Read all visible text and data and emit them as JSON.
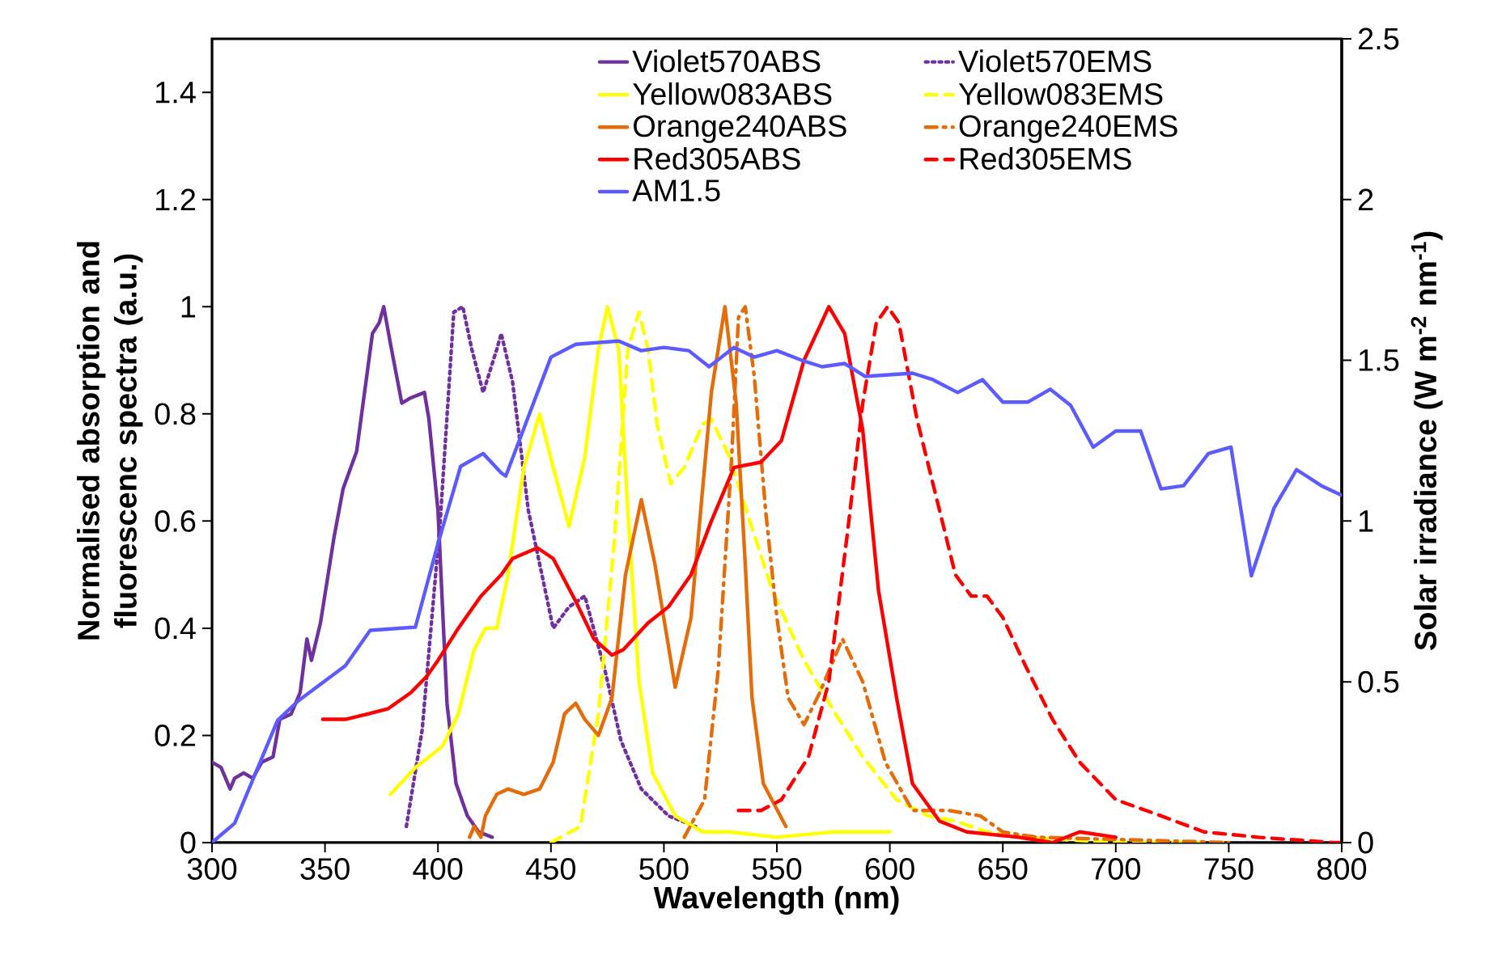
{
  "chart_data": {
    "type": "line",
    "xlabel": "Wavelength (nm)",
    "ylabel": "Normalised absorption and fluorescenc spectra (a.u.)",
    "y2label": "Solar irradiance (W m$^{-2}$ nm$^{-1}$)",
    "xlim": [
      300,
      800
    ],
    "xticks": [
      300,
      350,
      400,
      450,
      500,
      550,
      600,
      650,
      700,
      750,
      800
    ],
    "ylim": [
      0,
      1.5
    ],
    "yticks": [
      0,
      0.2,
      0.4,
      0.6,
      0.8,
      1,
      1.2,
      1.4
    ],
    "y2lim": [
      0,
      2.5
    ],
    "y2ticks": [
      0,
      0.5,
      1,
      1.5,
      2,
      2.5
    ],
    "legend": "top",
    "grid": false,
    "series": [
      {
        "name": "Violet570ABS",
        "color": "#7030a0",
        "line_style": "solid",
        "x": [
          300,
          304,
          308,
          310,
          314,
          318,
          322,
          327,
          330,
          335,
          339,
          342,
          344,
          348,
          354,
          358,
          364,
          371,
          374,
          376,
          379,
          384,
          388,
          394,
          396,
          400,
          404,
          408,
          413,
          418,
          424
        ],
        "values": [
          0.15,
          0.14,
          0.1,
          0.12,
          0.13,
          0.12,
          0.15,
          0.16,
          0.23,
          0.24,
          0.28,
          0.38,
          0.34,
          0.41,
          0.57,
          0.66,
          0.73,
          0.95,
          0.97,
          1.0,
          0.93,
          0.82,
          0.83,
          0.84,
          0.79,
          0.62,
          0.26,
          0.11,
          0.05,
          0.02,
          0.01
        ]
      },
      {
        "name": "Violet570EMS",
        "color": "#7030a0",
        "line_style": "dotted",
        "x": [
          386,
          393,
          401,
          407,
          411,
          415,
          420,
          426,
          428,
          433,
          440,
          451,
          458,
          465,
          474,
          481,
          490,
          502,
          514
        ],
        "values": [
          0.03,
          0.21,
          0.6,
          0.99,
          1.0,
          0.92,
          0.84,
          0.92,
          0.95,
          0.86,
          0.62,
          0.4,
          0.44,
          0.46,
          0.32,
          0.19,
          0.1,
          0.05,
          0.03
        ]
      },
      {
        "name": "Yellow083ABS",
        "color": "#ffff00",
        "line_style": "solid",
        "x": [
          379,
          390,
          402,
          409,
          416,
          421,
          426,
          431,
          438,
          445,
          451,
          458,
          465,
          471,
          475,
          480,
          484,
          489,
          495,
          505,
          517,
          529,
          550,
          575,
          600
        ],
        "values": [
          0.09,
          0.14,
          0.18,
          0.24,
          0.36,
          0.4,
          0.4,
          0.5,
          0.7,
          0.8,
          0.7,
          0.59,
          0.72,
          0.92,
          1.0,
          0.92,
          0.62,
          0.3,
          0.13,
          0.05,
          0.02,
          0.02,
          0.01,
          0.02,
          0.02
        ]
      },
      {
        "name": "Yellow083EMS",
        "color": "#ffff00",
        "line_style": "dashed",
        "x": [
          450,
          463,
          471,
          478,
          484,
          489,
          493,
          497,
          503,
          509,
          517,
          521,
          529,
          538,
          548,
          562,
          576,
          588,
          603,
          617,
          629,
          643,
          660,
          700,
          750
        ],
        "values": [
          0,
          0.03,
          0.24,
          0.56,
          0.92,
          0.99,
          0.92,
          0.78,
          0.67,
          0.7,
          0.78,
          0.79,
          0.72,
          0.6,
          0.47,
          0.34,
          0.24,
          0.16,
          0.08,
          0.05,
          0.04,
          0.02,
          0.01,
          0,
          0
        ]
      },
      {
        "name": "Orange240ABS",
        "color": "#e46c0a",
        "line_style": "solid",
        "x": [
          414,
          416,
          419,
          421,
          426,
          431,
          438,
          445,
          451,
          456,
          461,
          465,
          471,
          477,
          483,
          490,
          496,
          505,
          512,
          521,
          527,
          532,
          536,
          539,
          544,
          554
        ],
        "values": [
          0.01,
          0.03,
          0.01,
          0.05,
          0.09,
          0.1,
          0.09,
          0.1,
          0.15,
          0.24,
          0.26,
          0.23,
          0.2,
          0.27,
          0.5,
          0.64,
          0.52,
          0.29,
          0.42,
          0.84,
          1.0,
          0.82,
          0.52,
          0.27,
          0.11,
          0.03
        ]
      },
      {
        "name": "Orange240EMS",
        "color": "#e46c0a",
        "line_style": "dashdot",
        "x": [
          509,
          518,
          524,
          530,
          533,
          536,
          540,
          545,
          550,
          555,
          562,
          569,
          579,
          588,
          598,
          610,
          626,
          640,
          650,
          665,
          750
        ],
        "values": [
          0.01,
          0.08,
          0.32,
          0.72,
          0.98,
          1.0,
          0.87,
          0.62,
          0.42,
          0.27,
          0.22,
          0.28,
          0.38,
          0.3,
          0.15,
          0.06,
          0.06,
          0.05,
          0.02,
          0.01,
          0
        ]
      },
      {
        "name": "Red305ABS",
        "color": "#ff0000",
        "line_style": "solid",
        "x": [
          349,
          359,
          369,
          378,
          388,
          395,
          400,
          409,
          419,
          428,
          433,
          444,
          451,
          461,
          469,
          477,
          482,
          493,
          502,
          512,
          521,
          531,
          543,
          552,
          562,
          573,
          580,
          588,
          595,
          603,
          610,
          622,
          634,
          657,
          672,
          684,
          700
        ],
        "values": [
          0.23,
          0.23,
          0.24,
          0.25,
          0.28,
          0.31,
          0.34,
          0.4,
          0.46,
          0.5,
          0.53,
          0.55,
          0.53,
          0.45,
          0.38,
          0.35,
          0.36,
          0.41,
          0.44,
          0.5,
          0.6,
          0.7,
          0.71,
          0.75,
          0.9,
          1.0,
          0.95,
          0.77,
          0.47,
          0.27,
          0.11,
          0.04,
          0.02,
          0.01,
          0.0,
          0.02,
          0.01
        ]
      },
      {
        "name": "Red305EMS",
        "color": "#ff0000",
        "line_style": "dashed",
        "x": [
          533,
          543,
          552,
          564,
          573,
          581,
          588,
          594,
          599,
          604,
          612,
          622,
          629,
          636,
          643,
          650,
          660,
          672,
          684,
          700,
          720,
          739,
          763,
          796,
          800
        ],
        "values": [
          0.06,
          0.06,
          0.08,
          0.16,
          0.3,
          0.57,
          0.82,
          0.97,
          1.0,
          0.97,
          0.79,
          0.62,
          0.5,
          0.46,
          0.46,
          0.42,
          0.33,
          0.23,
          0.15,
          0.08,
          0.05,
          0.02,
          0.01,
          0,
          0
        ]
      },
      {
        "name": "AM1.5",
        "color": "#5b5bff",
        "line_style": "solid",
        "axis": "y2",
        "x": [
          300,
          310,
          329,
          338,
          359,
          370,
          390,
          400,
          410,
          420,
          428,
          430,
          450,
          461,
          480,
          490,
          500,
          511,
          520,
          531,
          540,
          550,
          561,
          570,
          580,
          589,
          610,
          619,
          630,
          641,
          650,
          661,
          671,
          680,
          690,
          700,
          711,
          720,
          730,
          741,
          751,
          760,
          770,
          780,
          791,
          800
        ],
        "values": [
          0,
          0.06,
          0.38,
          0.44,
          0.55,
          0.66,
          0.67,
          0.93,
          1.17,
          1.21,
          1.15,
          1.14,
          1.51,
          1.55,
          1.56,
          1.53,
          1.54,
          1.53,
          1.48,
          1.54,
          1.51,
          1.53,
          1.5,
          1.48,
          1.49,
          1.45,
          1.46,
          1.44,
          1.4,
          1.44,
          1.37,
          1.37,
          1.41,
          1.36,
          1.23,
          1.28,
          1.28,
          1.1,
          1.11,
          1.21,
          1.23,
          0.83,
          1.04,
          1.16,
          1.11,
          1.08
        ]
      }
    ]
  }
}
